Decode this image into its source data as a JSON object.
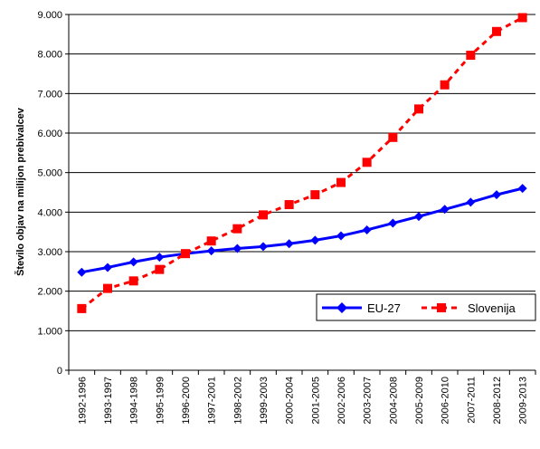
{
  "chart_data": {
    "type": "line",
    "title": "",
    "xlabel": "",
    "ylabel": "Število objav na milijon prebivalcev",
    "ylim": [
      0,
      9000
    ],
    "y_ticks": [
      "0",
      "1.000",
      "2.000",
      "3.000",
      "4.000",
      "5.000",
      "6.000",
      "7.000",
      "8.000",
      "9.000"
    ],
    "grid": "horizontal",
    "legend_position": "bottom-right",
    "categories": [
      "1992-1996",
      "1993-1997",
      "1994-1998",
      "1995-1999",
      "1996-2000",
      "1997-2001",
      "1998-2002",
      "1999-2003",
      "2000-2004",
      "2001-2005",
      "2002-2006",
      "2003-2007",
      "2004-2008",
      "2005-2009",
      "2006-2010",
      "2007-2011",
      "2008-2012",
      "2009-2013"
    ],
    "series": [
      {
        "name": "EU-27",
        "color": "#0000ff",
        "style": "solid",
        "marker": "diamond",
        "values": [
          2480,
          2600,
          2740,
          2860,
          2950,
          3020,
          3080,
          3130,
          3200,
          3290,
          3400,
          3550,
          3720,
          3890,
          4070,
          4250,
          4440,
          4600
        ]
      },
      {
        "name": "Slovenija",
        "color": "#ff0000",
        "style": "dashed",
        "marker": "square",
        "values": [
          1560,
          2070,
          2260,
          2550,
          2950,
          3270,
          3580,
          3930,
          4190,
          4440,
          4750,
          5260,
          5890,
          6610,
          7220,
          7970,
          8570,
          8920
        ]
      }
    ]
  }
}
